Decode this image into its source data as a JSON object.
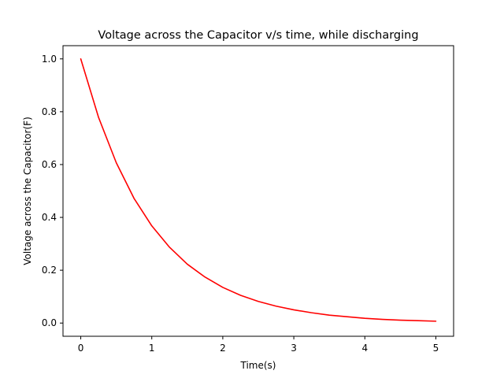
{
  "chart_data": {
    "type": "line",
    "title": "Voltage across the Capacitor v/s time, while discharging",
    "xlabel": "Time(s)",
    "ylabel": "Voltage across the Capacitor(F)",
    "xlim": [
      -0.25,
      5.25
    ],
    "ylim": [
      -0.05,
      1.05
    ],
    "xticks": [
      0,
      1,
      2,
      3,
      4,
      5
    ],
    "xtick_labels": [
      "0",
      "1",
      "2",
      "3",
      "4",
      "5"
    ],
    "yticks": [
      0.0,
      0.2,
      0.4,
      0.6,
      0.8,
      1.0
    ],
    "ytick_labels": [
      "0.0",
      "0.2",
      "0.4",
      "0.6",
      "0.8",
      "1.0"
    ],
    "grid": false,
    "series": [
      {
        "color": "#ff0000",
        "x": [
          0,
          0.25,
          0.5,
          0.75,
          1.0,
          1.25,
          1.5,
          1.75,
          2.0,
          2.25,
          2.5,
          2.75,
          3.0,
          3.25,
          3.5,
          3.75,
          4.0,
          4.25,
          4.5,
          4.75,
          5.0
        ],
        "y": [
          1.0,
          0.779,
          0.607,
          0.472,
          0.368,
          0.287,
          0.223,
          0.174,
          0.135,
          0.105,
          0.082,
          0.064,
          0.05,
          0.039,
          0.03,
          0.024,
          0.018,
          0.014,
          0.011,
          0.009,
          0.007
        ]
      }
    ]
  }
}
